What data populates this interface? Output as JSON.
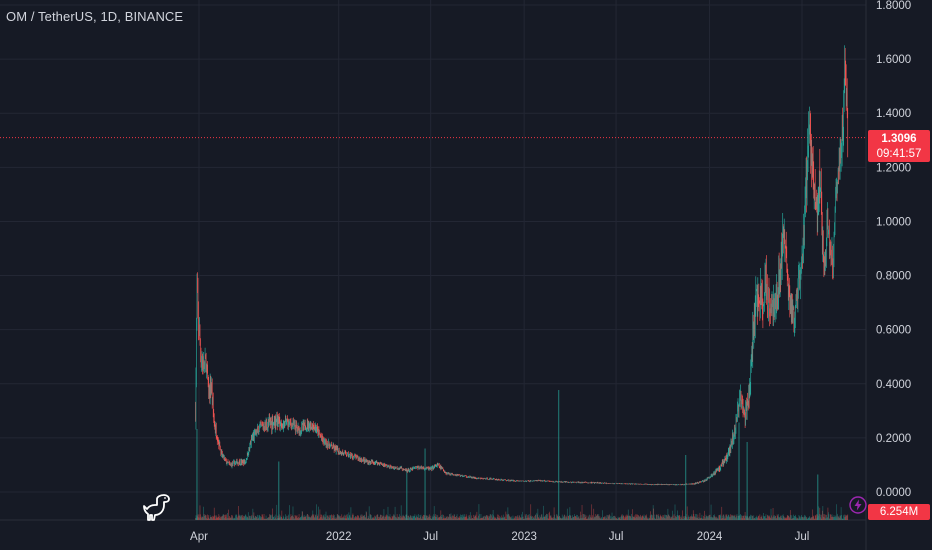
{
  "header": {
    "symbol": "OM / TetherUS, 1D, BINANCE"
  },
  "price_tag": {
    "price": "1.3096",
    "countdown": "09:41:57"
  },
  "volume_tag": {
    "value": "6.254M"
  },
  "icons": {
    "logo": "dino-icon",
    "alert": "lightning-icon"
  },
  "colors": {
    "up": "#26a69a",
    "down": "#ef5350",
    "tag": "#f23645",
    "background": "#161a25",
    "grid": "#232734"
  },
  "chart_data": {
    "type": "candlestick",
    "title": "OM / TetherUS, 1D, BINANCE",
    "y_ticks": [
      "1.8000",
      "1.6000",
      "1.4000",
      "1.2000",
      "1.0000",
      "0.8000",
      "0.6000",
      "0.4000",
      "0.2000",
      "0.0000"
    ],
    "y_tick_values": [
      1.8,
      1.6,
      1.4,
      1.2,
      1.0,
      0.8,
      0.6,
      0.4,
      0.2,
      0.0
    ],
    "x_ticks": [
      "Apr",
      "2022",
      "Jul",
      "2023",
      "Jul",
      "2024",
      "Jul"
    ],
    "x_tick_dates": [
      "2021-04-01",
      "2022-01-01",
      "2022-07-01",
      "2023-01-01",
      "2023-07-01",
      "2024-01-01",
      "2024-07-01"
    ],
    "ylim": [
      0.0,
      1.8
    ],
    "last_price": 1.3096,
    "price_path": {
      "dates": [
        "2021-03-25",
        "2021-03-28",
        "2021-04-01",
        "2021-04-05",
        "2021-04-10",
        "2021-04-15",
        "2021-04-20",
        "2021-04-25",
        "2021-05-01",
        "2021-05-08",
        "2021-05-15",
        "2021-05-25",
        "2021-06-01",
        "2021-06-15",
        "2021-07-01",
        "2021-07-15",
        "2021-08-01",
        "2021-08-15",
        "2021-09-01",
        "2021-09-10",
        "2021-09-20",
        "2021-10-01",
        "2021-10-15",
        "2021-11-01",
        "2021-11-15",
        "2021-12-01",
        "2021-12-15",
        "2022-01-01",
        "2022-01-15",
        "2022-02-01",
        "2022-02-15",
        "2022-03-01",
        "2022-03-15",
        "2022-04-01",
        "2022-04-15",
        "2022-05-01",
        "2022-05-10",
        "2022-05-20",
        "2022-06-01",
        "2022-06-15",
        "2022-07-01",
        "2022-07-15",
        "2022-08-01",
        "2022-09-01",
        "2022-10-01",
        "2022-11-01",
        "2022-11-15",
        "2022-12-01",
        "2023-01-01",
        "2023-02-01",
        "2023-03-01",
        "2023-04-01",
        "2023-05-01",
        "2023-06-01",
        "2023-07-01",
        "2023-08-01",
        "2023-09-01",
        "2023-10-01",
        "2023-11-01",
        "2023-12-01",
        "2023-12-20",
        "2024-01-05",
        "2024-01-15",
        "2024-01-25",
        "2024-02-01",
        "2024-02-10",
        "2024-02-20",
        "2024-02-26",
        "2024-03-01",
        "2024-03-05",
        "2024-03-10",
        "2024-03-15",
        "2024-03-20",
        "2024-03-25",
        "2024-04-01",
        "2024-04-08",
        "2024-04-15",
        "2024-04-20",
        "2024-04-25",
        "2024-05-01",
        "2024-05-10",
        "2024-05-20",
        "2024-05-25",
        "2024-06-01",
        "2024-06-05",
        "2024-06-10",
        "2024-06-15",
        "2024-06-20",
        "2024-06-25",
        "2024-07-01",
        "2024-07-05",
        "2024-07-10",
        "2024-07-15",
        "2024-07-20",
        "2024-07-25",
        "2024-08-01",
        "2024-08-05",
        "2024-08-10",
        "2024-08-15",
        "2024-08-20",
        "2024-08-25",
        "2024-09-01",
        "2024-09-05",
        "2024-09-10",
        "2024-09-15",
        "2024-09-20",
        "2024-09-23",
        "2024-09-26",
        "2024-09-29"
      ],
      "close": [
        0.3,
        0.72,
        0.6,
        0.5,
        0.46,
        0.48,
        0.36,
        0.4,
        0.25,
        0.2,
        0.14,
        0.11,
        0.1,
        0.11,
        0.11,
        0.2,
        0.24,
        0.25,
        0.27,
        0.24,
        0.26,
        0.25,
        0.23,
        0.25,
        0.24,
        0.19,
        0.17,
        0.15,
        0.14,
        0.13,
        0.12,
        0.11,
        0.11,
        0.1,
        0.09,
        0.09,
        0.08,
        0.08,
        0.09,
        0.09,
        0.085,
        0.1,
        0.07,
        0.06,
        0.05,
        0.048,
        0.045,
        0.043,
        0.04,
        0.042,
        0.038,
        0.036,
        0.035,
        0.033,
        0.031,
        0.03,
        0.028,
        0.028,
        0.027,
        0.03,
        0.04,
        0.06,
        0.08,
        0.1,
        0.12,
        0.16,
        0.23,
        0.3,
        0.36,
        0.34,
        0.28,
        0.32,
        0.38,
        0.55,
        0.68,
        0.75,
        0.66,
        0.8,
        0.72,
        0.7,
        0.68,
        0.85,
        0.95,
        0.85,
        0.72,
        0.68,
        0.64,
        0.7,
        0.76,
        0.82,
        0.98,
        1.15,
        1.38,
        1.25,
        1.1,
        1.0,
        1.18,
        0.92,
        0.84,
        1.0,
        0.9,
        0.86,
        1.12,
        1.15,
        1.28,
        1.38,
        1.56,
        1.48,
        1.31
      ],
      "spread": [
        0.06,
        0.14,
        0.1,
        0.08,
        0.07,
        0.06,
        0.05,
        0.06,
        0.04,
        0.03,
        0.02,
        0.015,
        0.015,
        0.015,
        0.015,
        0.03,
        0.03,
        0.04,
        0.05,
        0.03,
        0.03,
        0.03,
        0.03,
        0.03,
        0.03,
        0.025,
        0.02,
        0.02,
        0.015,
        0.015,
        0.015,
        0.012,
        0.012,
        0.01,
        0.01,
        0.01,
        0.01,
        0.01,
        0.01,
        0.01,
        0.01,
        0.012,
        0.008,
        0.006,
        0.005,
        0.005,
        0.005,
        0.005,
        0.004,
        0.004,
        0.004,
        0.004,
        0.004,
        0.004,
        0.003,
        0.003,
        0.003,
        0.003,
        0.003,
        0.004,
        0.006,
        0.01,
        0.015,
        0.02,
        0.02,
        0.03,
        0.04,
        0.05,
        0.06,
        0.05,
        0.05,
        0.06,
        0.08,
        0.1,
        0.12,
        0.12,
        0.1,
        0.12,
        0.1,
        0.1,
        0.1,
        0.12,
        0.12,
        0.1,
        0.1,
        0.08,
        0.08,
        0.08,
        0.1,
        0.1,
        0.12,
        0.14,
        0.16,
        0.14,
        0.12,
        0.12,
        0.14,
        0.1,
        0.08,
        0.1,
        0.1,
        0.08,
        0.1,
        0.1,
        0.12,
        0.12,
        0.14,
        0.12,
        0.1
      ]
    },
    "volume_spikes": [
      {
        "date": "2021-03-28",
        "level": 0.7
      },
      {
        "date": "2021-09-05",
        "level": 0.45
      },
      {
        "date": "2022-05-15",
        "level": 0.4
      },
      {
        "date": "2022-06-20",
        "level": 0.55
      },
      {
        "date": "2023-03-10",
        "level": 1.0
      },
      {
        "date": "2023-11-15",
        "level": 0.5
      },
      {
        "date": "2024-02-28",
        "level": 0.75
      },
      {
        "date": "2024-03-15",
        "level": 0.6
      },
      {
        "date": "2024-08-01",
        "level": 0.35
      }
    ]
  }
}
